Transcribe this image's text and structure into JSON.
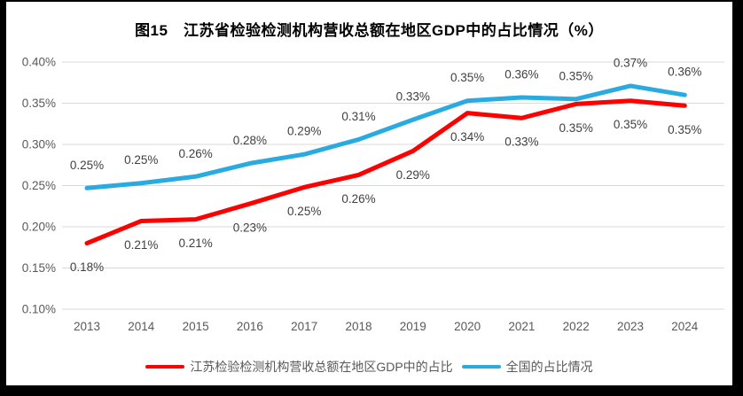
{
  "frame": {
    "border_color": "#000000",
    "canvas_color": "#ffffff"
  },
  "colors": {
    "gridline": "#d9d9d9",
    "axis_text": "#595959",
    "data_label_text": "#404040",
    "title_text": "#000000",
    "series_red": "#fe0000",
    "series_blue": "#29abe2"
  },
  "chart_data": {
    "type": "line",
    "title": "图15　江苏省检验检测机构营收总额在地区GDP中的占比情况（%）",
    "categories": [
      "2013",
      "2014",
      "2015",
      "2016",
      "2017",
      "2018",
      "2019",
      "2020",
      "2021",
      "2022",
      "2023",
      "2024"
    ],
    "series": [
      {
        "name": "江苏检验检测机构营收总额在地区GDP中的占比",
        "color": "#fe0000",
        "values": [
          0.18,
          0.21,
          0.21,
          0.23,
          0.25,
          0.26,
          0.29,
          0.34,
          0.33,
          0.35,
          0.35,
          0.35
        ],
        "labels": [
          "0.18%",
          "0.21%",
          "0.21%",
          "0.23%",
          "0.25%",
          "0.26%",
          "0.29%",
          "0.34%",
          "0.33%",
          "0.35%",
          "0.35%",
          "0.35%"
        ],
        "plot_values": [
          0.18,
          0.207,
          0.209,
          0.228,
          0.248,
          0.263,
          0.292,
          0.338,
          0.332,
          0.349,
          0.353,
          0.347
        ],
        "label_position": "below"
      },
      {
        "name": "全国的占比情况",
        "color": "#29abe2",
        "values": [
          0.25,
          0.25,
          0.26,
          0.28,
          0.29,
          0.31,
          0.33,
          0.35,
          0.36,
          0.35,
          0.37,
          0.36
        ],
        "labels": [
          "0.25%",
          "0.25%",
          "0.26%",
          "0.28%",
          "0.29%",
          "0.31%",
          "0.33%",
          "0.35%",
          "0.36%",
          "0.35%",
          "0.37%",
          "0.36%"
        ],
        "plot_values": [
          0.247,
          0.253,
          0.261,
          0.277,
          0.288,
          0.306,
          0.33,
          0.353,
          0.357,
          0.355,
          0.371,
          0.36
        ],
        "label_position": "above"
      }
    ],
    "y_axis": {
      "ticks": [
        "0.40%",
        "0.35%",
        "0.30%",
        "0.25%",
        "0.20%",
        "0.15%",
        "0.10%"
      ],
      "min": 0.1,
      "max": 0.4,
      "unit": "%"
    },
    "grid": true,
    "legend_position": "bottom"
  }
}
